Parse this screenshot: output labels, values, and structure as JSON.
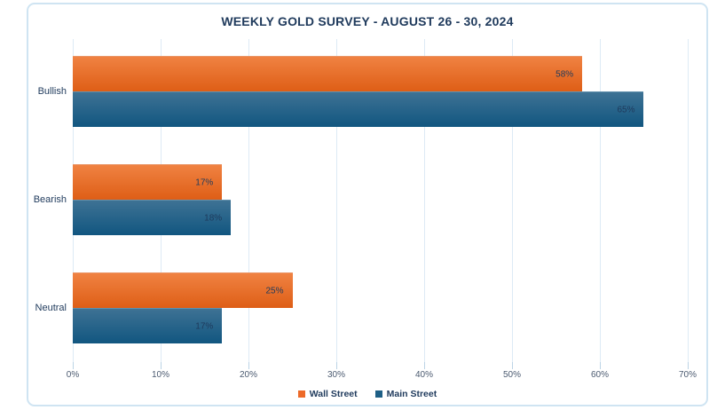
{
  "title": "WEEKLY GOLD SURVEY - AUGUST 26 - 30, 2024",
  "chart_data": {
    "type": "bar",
    "orientation": "horizontal",
    "title": "WEEKLY GOLD SURVEY - AUGUST 26 - 30, 2024",
    "categories": [
      "Bullish",
      "Bearish",
      "Neutral"
    ],
    "series": [
      {
        "name": "Wall Street",
        "values": [
          58,
          17,
          25
        ],
        "data_labels": [
          "58%",
          "17%",
          "25%"
        ],
        "color_top": "#F08242",
        "color_bottom": "#DE5E16",
        "legend_color": "#ED6A28"
      },
      {
        "name": "Main Street",
        "values": [
          65,
          18,
          17
        ],
        "data_labels": [
          "65%",
          "18%",
          "17%"
        ],
        "color_top": "#3E7294",
        "color_bottom": "#115680",
        "legend_color": "#1E5F86"
      }
    ],
    "value_axis": {
      "min": 0,
      "max": 70,
      "tick_step": 10,
      "tick_labels": [
        "0%",
        "10%",
        "20%",
        "30%",
        "40%",
        "50%",
        "60%",
        "70%"
      ]
    },
    "grid": true,
    "legend_position": "bottom"
  },
  "colors": {
    "title_text": "#1F3A5C",
    "category_text": "#1F3A5C",
    "tick_text": "#4B5A70",
    "data_label_text": "#1E3A5C",
    "gridline": "#DDEAF5",
    "tick_mark": "#BCD4E6",
    "card_border": "#CFE4F2",
    "background": "#FFFFFF"
  }
}
